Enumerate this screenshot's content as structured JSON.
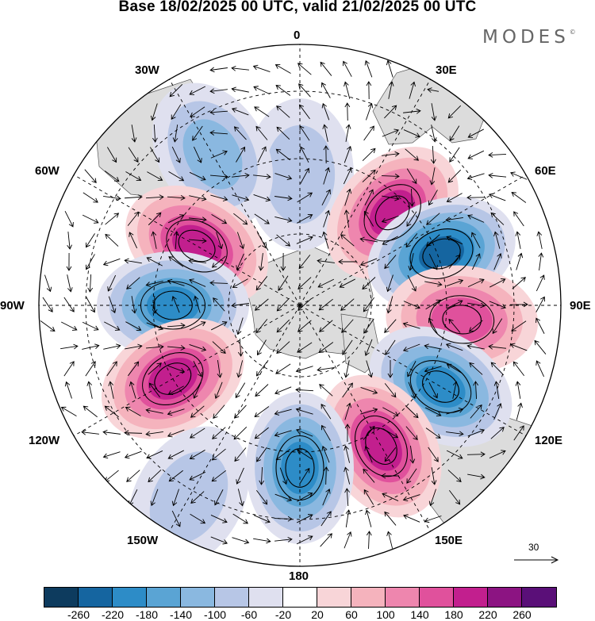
{
  "title": "Base 18/02/2025 00 UTC, valid 21/02/2025 00 UTC",
  "brand": {
    "name": "MODES",
    "mark": "©"
  },
  "projection": "south-polar-stereographic",
  "longitude_labels": [
    "0",
    "30E",
    "60E",
    "90E",
    "120E",
    "150E",
    "180",
    "150W",
    "120W",
    "90W",
    "60W",
    "30W"
  ],
  "reference_vector": {
    "label": "30",
    "units_value": 30
  },
  "colorbar": {
    "ticks": [
      "-260",
      "-220",
      "-180",
      "-140",
      "-100",
      "-60",
      "-20",
      "20",
      "60",
      "100",
      "140",
      "180",
      "220",
      "260"
    ],
    "colors": [
      "#0d3b5e",
      "#1565a0",
      "#2d8cc7",
      "#5aa4d4",
      "#8ab8e0",
      "#b7c6e6",
      "#dfe0ef",
      "#ffffff",
      "#f8d5d8",
      "#f5b3bd",
      "#ee86ae",
      "#e0519c",
      "#c21f8e",
      "#8c1482",
      "#5a0f78"
    ]
  },
  "land_color": "#dcdcdc",
  "anomaly_centers": [
    {
      "sign": "negative",
      "lon_label": "0",
      "strength": "-60"
    },
    {
      "sign": "negative",
      "lon_label": "30W",
      "strength": "-100"
    },
    {
      "sign": "positive",
      "lon_label": "45E",
      "strength": "180"
    },
    {
      "sign": "positive",
      "lon_label": "60W",
      "strength": "180"
    },
    {
      "sign": "negative",
      "lon_label": "70E",
      "strength": "-220"
    },
    {
      "sign": "negative",
      "lon_label": "90W",
      "strength": "-180"
    },
    {
      "sign": "positive",
      "lon_label": "95E",
      "strength": "140"
    },
    {
      "sign": "negative",
      "lon_label": "120E",
      "strength": "-180"
    },
    {
      "sign": "positive",
      "lon_label": "120W",
      "strength": "180"
    },
    {
      "sign": "positive",
      "lon_label": "150E",
      "strength": "180"
    },
    {
      "sign": "negative",
      "lon_label": "180",
      "strength": "-180"
    },
    {
      "sign": "negative",
      "lon_label": "150W",
      "strength": "-60"
    }
  ]
}
